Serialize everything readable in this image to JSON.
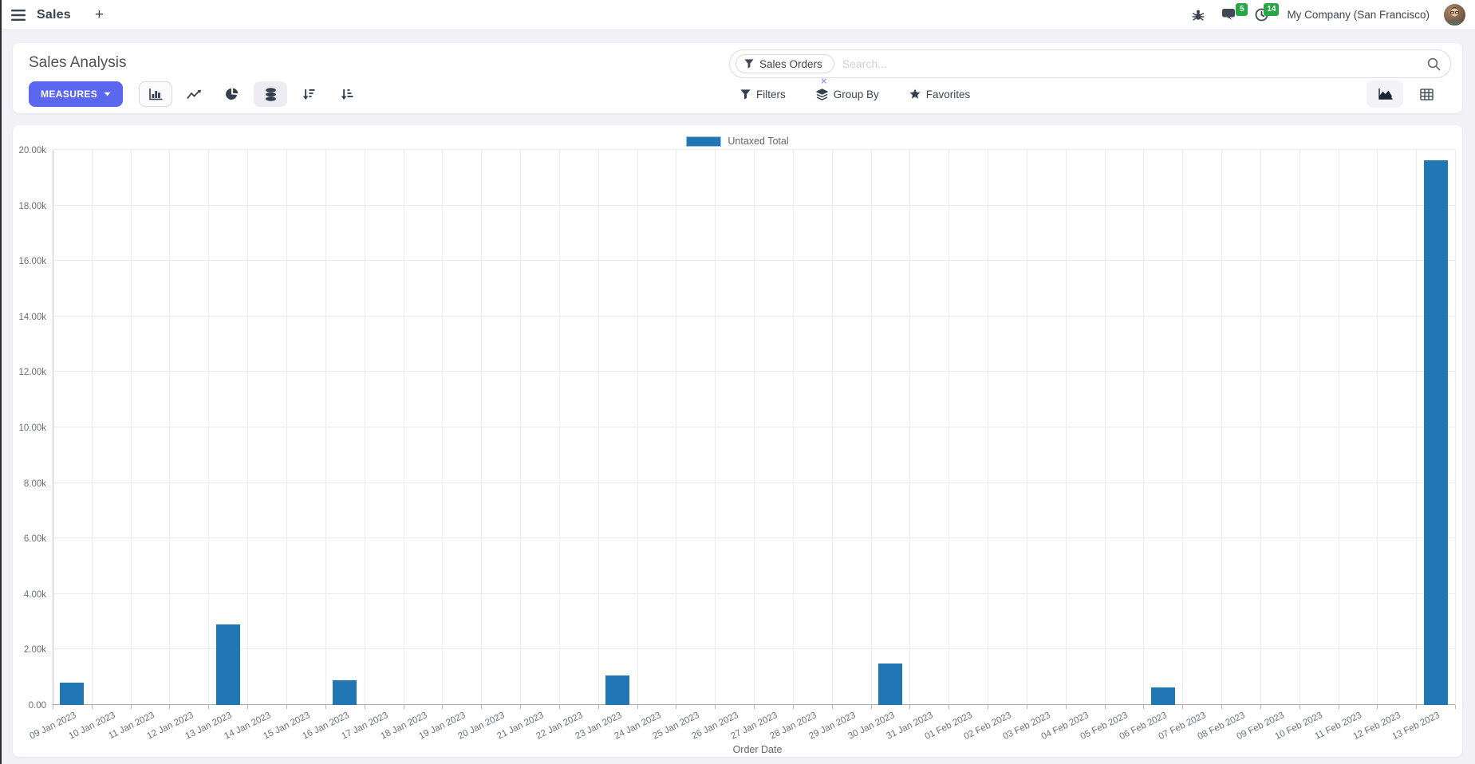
{
  "navbar": {
    "app_name": "Sales",
    "plus_label": "+",
    "messages_badge": "5",
    "activities_badge": "14",
    "company": "My Company (San Francisco)"
  },
  "control_panel": {
    "breadcrumb": "Sales Analysis",
    "measures_label": "MEASURES",
    "search": {
      "facet": "Sales Orders",
      "facet_remove": "×",
      "placeholder": "Search..."
    },
    "buttons": {
      "filters": "Filters",
      "group_by": "Group By",
      "favorites": "Favorites"
    },
    "icons": [
      "bar-chart",
      "line-chart",
      "pie-chart",
      "stacked",
      "sort-desc",
      "sort-asc"
    ],
    "view_switcher": [
      "graph-view",
      "pivot-view"
    ]
  },
  "chart_data": {
    "type": "bar",
    "title": "",
    "xlabel": "Order Date",
    "ylabel": "",
    "ylim": [
      0,
      20000
    ],
    "grid": true,
    "legend_position": "top",
    "y_ticks": [
      "0.00",
      "2.00k",
      "4.00k",
      "6.00k",
      "8.00k",
      "10.00k",
      "12.00k",
      "14.00k",
      "16.00k",
      "18.00k",
      "20.00k"
    ],
    "categories": [
      "09 Jan 2023",
      "10 Jan 2023",
      "11 Jan 2023",
      "12 Jan 2023",
      "13 Jan 2023",
      "14 Jan 2023",
      "15 Jan 2023",
      "16 Jan 2023",
      "17 Jan 2023",
      "18 Jan 2023",
      "19 Jan 2023",
      "20 Jan 2023",
      "21 Jan 2023",
      "22 Jan 2023",
      "23 Jan 2023",
      "24 Jan 2023",
      "25 Jan 2023",
      "26 Jan 2023",
      "27 Jan 2023",
      "28 Jan 2023",
      "29 Jan 2023",
      "30 Jan 2023",
      "31 Jan 2023",
      "01 Feb 2023",
      "02 Feb 2023",
      "03 Feb 2023",
      "04 Feb 2023",
      "05 Feb 2023",
      "06 Feb 2023",
      "07 Feb 2023",
      "08 Feb 2023",
      "09 Feb 2023",
      "10 Feb 2023",
      "11 Feb 2023",
      "12 Feb 2023",
      "13 Feb 2023"
    ],
    "series": [
      {
        "name": "Untaxed Total",
        "color": "#2077b4",
        "values": [
          810,
          0,
          0,
          0,
          2900,
          0,
          0,
          890,
          0,
          0,
          0,
          0,
          0,
          0,
          1060,
          0,
          0,
          0,
          0,
          0,
          0,
          1490,
          0,
          0,
          0,
          0,
          0,
          0,
          620,
          0,
          0,
          0,
          0,
          0,
          0,
          19630
        ]
      }
    ]
  },
  "colors": {
    "accent": "#5c67f0",
    "badge_green": "#28a745",
    "bar_blue": "#2077b4",
    "page_bg": "#f1f1f6"
  }
}
